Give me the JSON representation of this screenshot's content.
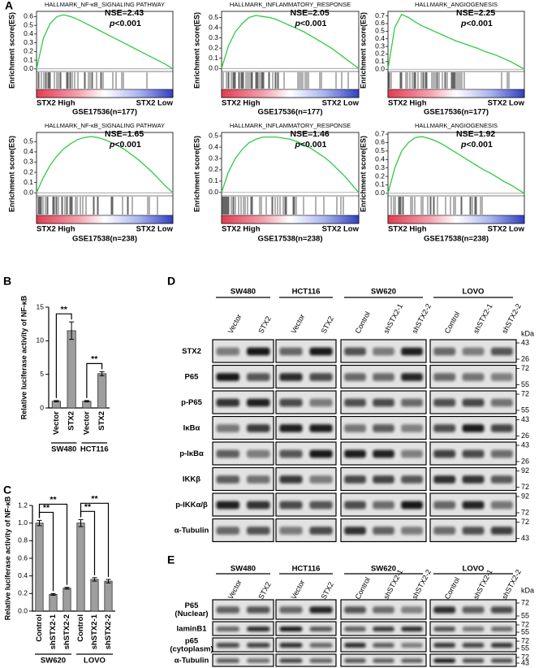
{
  "panel_labels": [
    "A",
    "B",
    "C",
    "D",
    "E"
  ],
  "chart_data": [
    {
      "type": "gsea",
      "title": "HALLMARK_NF-κB_SIGNALING PATHWAY",
      "annotation": "NSE=2.43",
      "p_label": {
        "italic": "p",
        "text": "<0.001"
      },
      "ylabel": "Enrichment score(ES)",
      "high_label": "STX2 High",
      "low_label": "STX2 Low",
      "xlabel": "GSE17536(n=177)",
      "color": "#2ecc40",
      "categories": [
        null,
        null,
        null,
        null,
        null,
        null,
        null,
        null,
        null,
        null,
        null,
        null,
        null,
        null,
        null,
        null,
        null,
        null,
        null,
        null,
        null
      ],
      "values": [
        0,
        0.35,
        0.52,
        0.6,
        0.62,
        0.6,
        0.57,
        0.53,
        0.49,
        0.45,
        0.41,
        0.37,
        0.33,
        0.29,
        0.25,
        0.21,
        0.17,
        0.13,
        0.09,
        0.05,
        0.0
      ],
      "ylim": [
        -0.03,
        0.66
      ],
      "yticks": [
        {
          "value": 0,
          "label": "0.0"
        },
        0.1,
        0.2,
        0.3,
        0.4,
        0.5,
        0.6
      ]
    },
    {
      "type": "gsea",
      "title": "HALLMARK_INFLAMMATORY_RESPONSE",
      "annotation": "NSE=2.05",
      "p_label": {
        "italic": "p",
        "text": "<0.001"
      },
      "ylabel": "Enrichment score(ES)",
      "high_label": "STX2 High",
      "low_label": "STX2 Low",
      "xlabel": "GSE17536(n=177)",
      "color": "#2ecc40",
      "categories": [
        null,
        null,
        null,
        null,
        null,
        null,
        null,
        null,
        null,
        null,
        null,
        null,
        null,
        null,
        null,
        null,
        null,
        null,
        null,
        null,
        null
      ],
      "values": [
        0,
        0.22,
        0.36,
        0.44,
        0.5,
        0.52,
        0.51,
        0.5,
        0.48,
        0.45,
        0.42,
        0.39,
        0.36,
        0.32,
        0.28,
        0.24,
        0.2,
        0.15,
        0.1,
        0.05,
        0.0
      ],
      "ylim": [
        -0.03,
        0.56
      ],
      "yticks": [
        {
          "value": 0,
          "label": "0.0"
        },
        0.1,
        0.2,
        0.3,
        0.4,
        0.5
      ]
    },
    {
      "type": "gsea",
      "title": "HALLMARK_ANGIOGENESIS",
      "annotation": "NSE=2.25",
      "p_label": {
        "italic": "p",
        "text": "<0.001"
      },
      "ylabel": "Enrichment score(ES)",
      "high_label": "STX2 High",
      "low_label": "STX2 Low",
      "xlabel": "GSE17536(n=177)",
      "color": "#2ecc40",
      "categories": [
        null,
        null,
        null,
        null,
        null,
        null,
        null,
        null,
        null,
        null,
        null,
        null,
        null,
        null,
        null,
        null,
        null,
        null,
        null,
        null,
        null
      ],
      "values": [
        0,
        0.55,
        0.72,
        0.68,
        0.62,
        0.57,
        0.53,
        0.49,
        0.45,
        0.41,
        0.37,
        0.34,
        0.31,
        0.28,
        0.24,
        0.21,
        0.18,
        0.14,
        0.1,
        0.05,
        0.0
      ],
      "ylim": [
        -0.03,
        0.76
      ],
      "yticks": [
        {
          "value": 0,
          "label": "0.0"
        },
        0.1,
        0.2,
        0.3,
        0.4,
        0.5,
        0.6,
        0.7
      ]
    },
    {
      "type": "gsea",
      "title": "HALLMARK_NF-κB_SIGNALING PATHWAY",
      "annotation": "NSE=1.65",
      "p_label": {
        "italic": "p",
        "text": "<0.001"
      },
      "ylabel": "Enrichment score(ES)",
      "high_label": "STX2 High",
      "low_label": "STX2 Low",
      "xlabel": "GSE17538(n=238)",
      "color": "#2ecc40",
      "categories": [
        null,
        null,
        null,
        null,
        null,
        null,
        null,
        null,
        null,
        null,
        null,
        null,
        null,
        null,
        null,
        null,
        null,
        null,
        null,
        null,
        null
      ],
      "values": [
        0,
        0.15,
        0.27,
        0.36,
        0.43,
        0.48,
        0.52,
        0.54,
        0.55,
        0.54,
        0.52,
        0.49,
        0.46,
        0.42,
        0.37,
        0.32,
        0.26,
        0.2,
        0.13,
        0.06,
        0.0
      ],
      "ylim": [
        -0.03,
        0.59
      ],
      "yticks": [
        {
          "value": 0,
          "label": "0.0"
        },
        0.1,
        0.2,
        0.3,
        0.4,
        0.5
      ]
    },
    {
      "type": "gsea",
      "title": "HALLMARK_INFLAMMATORY_RESPONSE",
      "annotation": "NSE=1.46",
      "p_label": {
        "italic": "p",
        "text": "<0.001"
      },
      "ylabel": "Enrichment score(ES)",
      "high_label": "STX2 High",
      "low_label": "STX2 Low",
      "xlabel": "GSE17538(n=238)",
      "color": "#2ecc40",
      "categories": [
        null,
        null,
        null,
        null,
        null,
        null,
        null,
        null,
        null,
        null,
        null,
        null,
        null,
        null,
        null,
        null,
        null,
        null,
        null,
        null,
        null
      ],
      "values": [
        0,
        0.18,
        0.3,
        0.38,
        0.44,
        0.47,
        0.49,
        0.49,
        0.49,
        0.48,
        0.47,
        0.45,
        0.42,
        0.39,
        0.35,
        0.31,
        0.26,
        0.2,
        0.14,
        0.07,
        0.0
      ],
      "ylim": [
        -0.03,
        0.53
      ],
      "yticks": [
        {
          "value": 0,
          "label": "0.0"
        },
        0.1,
        0.2,
        0.3,
        0.4,
        0.5
      ]
    },
    {
      "type": "gsea",
      "title": "HALLMARK_ANGIOGENESIS",
      "annotation": "NSE=1.92",
      "p_label": {
        "italic": "p",
        "text": "<0.001"
      },
      "ylabel": "Enrichment score(ES)",
      "high_label": "STX2 High",
      "low_label": "STX2 Low",
      "xlabel": "GSE17538(n=238)",
      "color": "#2ecc40",
      "categories": [
        null,
        null,
        null,
        null,
        null,
        null,
        null,
        null,
        null,
        null,
        null,
        null,
        null,
        null,
        null,
        null,
        null,
        null,
        null,
        null,
        null
      ],
      "values": [
        0,
        0.3,
        0.5,
        0.6,
        0.66,
        0.67,
        0.65,
        0.62,
        0.58,
        0.53,
        0.48,
        0.43,
        0.38,
        0.33,
        0.28,
        0.24,
        0.19,
        0.14,
        0.1,
        0.05,
        0.0
      ],
      "ylim": [
        -0.03,
        0.72
      ],
      "yticks": [
        {
          "value": 0,
          "label": "0.0"
        },
        0.1,
        0.2,
        0.3,
        0.4,
        0.5,
        0.6,
        0.7
      ]
    },
    {
      "type": "bar",
      "ylabel": "Relative luciferase activity of NF-κB",
      "color": "#9e9e9e",
      "categories": [
        "Vector",
        "STX2",
        "Vector",
        "STX2"
      ],
      "groups": [
        "SW480",
        "HCT116"
      ],
      "values": [
        1,
        11.5,
        1,
        5.1
      ],
      "errors": [
        0.1,
        1.3,
        0.1,
        0.3
      ],
      "significance": [
        {
          "label": "**",
          "from": 0,
          "to": 1
        },
        {
          "label": "**",
          "from": 2,
          "to": 3
        }
      ],
      "ylim": [
        0,
        15
      ],
      "yticks": [
        0,
        5,
        10,
        15
      ]
    },
    {
      "type": "bar",
      "ylabel": "Relative luciferase activity of NF-κB",
      "color": "#9e9e9e",
      "categories": [
        "Control",
        "shSTX2-1",
        "shSTX2-2",
        "Control",
        "shSTX2-1",
        "shSTX2-2"
      ],
      "groups": [
        "SW620",
        "LOVO"
      ],
      "values": [
        1,
        0.19,
        0.26,
        1,
        0.36,
        0.34
      ],
      "errors": [
        0.03,
        0.01,
        0.01,
        0.04,
        0.02,
        0.02
      ],
      "significance": [
        {
          "label": "**",
          "from": 0,
          "to": 1
        },
        {
          "label": "**",
          "from": 0,
          "to": 2
        },
        {
          "label": "**",
          "from": 3,
          "to": 4
        },
        {
          "label": "**",
          "from": 3,
          "to": 5
        }
      ],
      "ylim": [
        0,
        1.2
      ],
      "yticks": [
        {
          "value": 0,
          "label": "0.0"
        },
        0.2,
        0.4,
        0.6,
        0.8,
        {
          "value": 1,
          "label": "1.0"
        },
        1.2
      ]
    }
  ],
  "blots": [
    {
      "kda_unit": "kDa",
      "groups": [
        {
          "name": "SW480",
          "lanes": [
            "Vector",
            "STX2"
          ]
        },
        {
          "name": "HCT116",
          "lanes": [
            "Vector",
            "STX2"
          ]
        },
        {
          "name": "SW620",
          "lanes": [
            "Control",
            "shSTX2-1",
            "shSTX2-2"
          ]
        },
        {
          "name": "LOVO",
          "lanes": [
            "Control",
            "shSTX2-1",
            "shSTX2-2"
          ]
        }
      ],
      "rows": [
        {
          "label": "STX2",
          "kda": [
            43,
            26
          ]
        },
        {
          "label": "P65",
          "kda": [
            72,
            55
          ]
        },
        {
          "label": "p-P65",
          "kda": [
            72,
            55
          ]
        },
        {
          "label": "IκBα",
          "kda": [
            43,
            26
          ]
        },
        {
          "label": "p-IκBα",
          "kda": [
            43,
            26
          ]
        },
        {
          "label": "IKKβ",
          "kda": [
            92,
            72
          ]
        },
        {
          "label": "p-IKKα/β",
          "kda": [
            92,
            72
          ]
        },
        {
          "label": "α-Tubulin",
          "kda": [
            72,
            43
          ]
        }
      ]
    },
    {
      "kda_unit": "kDa",
      "groups": [
        {
          "name": "SW480",
          "lanes": [
            "Vector",
            "STX2"
          ]
        },
        {
          "name": "HCT116",
          "lanes": [
            "Vector",
            "STX2"
          ]
        },
        {
          "name": "SW620",
          "lanes": [
            "Control",
            "shSTX2-1",
            "shSTX2-2"
          ]
        },
        {
          "name": "LOVO",
          "lanes": [
            "Control",
            "shSTX2-1",
            "shSTX2-2"
          ]
        }
      ],
      "rows": [
        {
          "label": "P65",
          "sublabel": "(Nuclear)",
          "kda": [
            72,
            55
          ]
        },
        {
          "label": "laminB1",
          "kda": [
            72,
            55
          ]
        },
        {
          "label": "p65",
          "sublabel": "(cytoplasm)",
          "kda": [
            72,
            55
          ]
        },
        {
          "label": "α-Tubulin",
          "kda": [
            72,
            43
          ]
        }
      ]
    }
  ]
}
